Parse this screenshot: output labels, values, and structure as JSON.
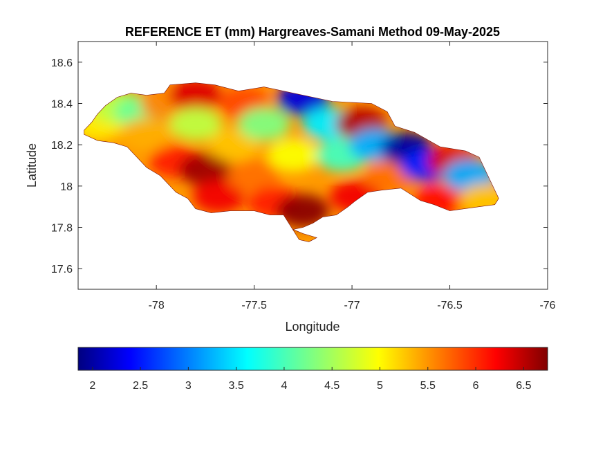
{
  "map": {
    "title": "REFERENCE ET (mm) Hargreaves-Samani Method  09-May-2025",
    "xlabel": "Longitude",
    "ylabel": "Latitude",
    "xlim": [
      -78.4,
      -76.0
    ],
    "ylim": [
      17.5,
      18.7
    ],
    "xticks": [
      -78,
      -77.5,
      -77,
      -76.5,
      -76
    ],
    "xtick_labels": [
      "-78",
      "-77.5",
      "-77",
      "-76.5",
      "-76"
    ],
    "yticks": [
      17.6,
      17.8,
      18.0,
      18.2,
      18.4,
      18.6
    ],
    "ytick_labels": [
      "17.6",
      "17.8",
      "18",
      "18.2",
      "18.4",
      "18.6"
    ],
    "colormap": "jet",
    "colorbar": {
      "range": [
        1.85,
        6.75
      ],
      "ticks": [
        2,
        2.5,
        3,
        3.5,
        4,
        4.5,
        5,
        5.5,
        6,
        6.5
      ],
      "tick_labels": [
        "2",
        "2.5",
        "3",
        "3.5",
        "4",
        "4.5",
        "5",
        "5.5",
        "6",
        "6.5"
      ]
    },
    "region_outline_lonlat": [
      [
        -78.37,
        18.27
      ],
      [
        -78.33,
        18.31
      ],
      [
        -78.3,
        18.35
      ],
      [
        -78.26,
        18.39
      ],
      [
        -78.2,
        18.43
      ],
      [
        -78.13,
        18.45
      ],
      [
        -78.05,
        18.44
      ],
      [
        -77.96,
        18.45
      ],
      [
        -77.93,
        18.49
      ],
      [
        -77.8,
        18.5
      ],
      [
        -77.7,
        18.49
      ],
      [
        -77.58,
        18.46
      ],
      [
        -77.45,
        18.48
      ],
      [
        -77.3,
        18.45
      ],
      [
        -77.1,
        18.41
      ],
      [
        -76.9,
        18.4
      ],
      [
        -76.82,
        18.36
      ],
      [
        -76.78,
        18.29
      ],
      [
        -76.68,
        18.26
      ],
      [
        -76.55,
        18.19
      ],
      [
        -76.42,
        18.17
      ],
      [
        -76.35,
        18.14
      ],
      [
        -76.3,
        18.04
      ],
      [
        -76.25,
        17.94
      ],
      [
        -76.27,
        17.91
      ],
      [
        -76.35,
        17.9
      ],
      [
        -76.5,
        17.88
      ],
      [
        -76.58,
        17.91
      ],
      [
        -76.65,
        17.93
      ],
      [
        -76.75,
        17.99
      ],
      [
        -76.85,
        17.98
      ],
      [
        -76.92,
        17.97
      ],
      [
        -76.98,
        17.93
      ],
      [
        -77.02,
        17.9
      ],
      [
        -77.08,
        17.86
      ],
      [
        -77.15,
        17.85
      ],
      [
        -77.2,
        17.82
      ],
      [
        -77.25,
        17.8
      ],
      [
        -77.3,
        17.79
      ],
      [
        -77.25,
        17.77
      ],
      [
        -77.18,
        17.75
      ],
      [
        -77.22,
        17.73
      ],
      [
        -77.27,
        17.74
      ],
      [
        -77.35,
        17.86
      ],
      [
        -77.42,
        17.86
      ],
      [
        -77.5,
        17.88
      ],
      [
        -77.62,
        17.88
      ],
      [
        -77.72,
        17.87
      ],
      [
        -77.8,
        17.89
      ],
      [
        -77.84,
        17.94
      ],
      [
        -77.9,
        17.97
      ],
      [
        -77.98,
        18.05
      ],
      [
        -78.05,
        18.09
      ],
      [
        -78.1,
        18.14
      ],
      [
        -78.15,
        18.19
      ],
      [
        -78.22,
        18.21
      ],
      [
        -78.3,
        18.22
      ],
      [
        -78.37,
        18.25
      ]
    ],
    "field_centers": [
      {
        "lon": -78.3,
        "lat": 18.3,
        "value": 5.0
      },
      {
        "lon": -78.2,
        "lat": 18.38,
        "value": 4.6
      },
      {
        "lon": -78.08,
        "lat": 18.36,
        "value": 4.2
      },
      {
        "lon": -78.05,
        "lat": 18.25,
        "value": 5.3
      },
      {
        "lon": -77.95,
        "lat": 18.4,
        "value": 5.5
      },
      {
        "lon": -77.9,
        "lat": 18.12,
        "value": 6.0
      },
      {
        "lon": -77.8,
        "lat": 18.44,
        "value": 6.3
      },
      {
        "lon": -77.8,
        "lat": 18.3,
        "value": 4.6
      },
      {
        "lon": -77.75,
        "lat": 18.08,
        "value": 6.6
      },
      {
        "lon": -77.68,
        "lat": 17.95,
        "value": 6.2
      },
      {
        "lon": -77.6,
        "lat": 18.2,
        "value": 5.2
      },
      {
        "lon": -77.55,
        "lat": 18.4,
        "value": 5.8
      },
      {
        "lon": -77.5,
        "lat": 18.05,
        "value": 5.6
      },
      {
        "lon": -77.45,
        "lat": 18.3,
        "value": 4.3
      },
      {
        "lon": -77.4,
        "lat": 17.92,
        "value": 6.0
      },
      {
        "lon": -77.3,
        "lat": 18.15,
        "value": 4.9
      },
      {
        "lon": -77.25,
        "lat": 18.42,
        "value": 2.3
      },
      {
        "lon": -77.25,
        "lat": 17.88,
        "value": 6.7
      },
      {
        "lon": -77.12,
        "lat": 18.3,
        "value": 3.6
      },
      {
        "lon": -77.05,
        "lat": 18.15,
        "value": 4.0
      },
      {
        "lon": -76.98,
        "lat": 17.95,
        "value": 6.2
      },
      {
        "lon": -76.95,
        "lat": 18.3,
        "value": 6.5
      },
      {
        "lon": -76.88,
        "lat": 18.2,
        "value": 3.3
      },
      {
        "lon": -76.8,
        "lat": 18.05,
        "value": 5.6
      },
      {
        "lon": -76.72,
        "lat": 18.18,
        "value": 2.0
      },
      {
        "lon": -76.62,
        "lat": 18.1,
        "value": 2.6
      },
      {
        "lon": -76.55,
        "lat": 17.93,
        "value": 6.1
      },
      {
        "lon": -76.48,
        "lat": 18.12,
        "value": 6.3
      },
      {
        "lon": -76.4,
        "lat": 18.05,
        "value": 3.3
      },
      {
        "lon": -76.32,
        "lat": 17.93,
        "value": 5.2
      }
    ]
  }
}
